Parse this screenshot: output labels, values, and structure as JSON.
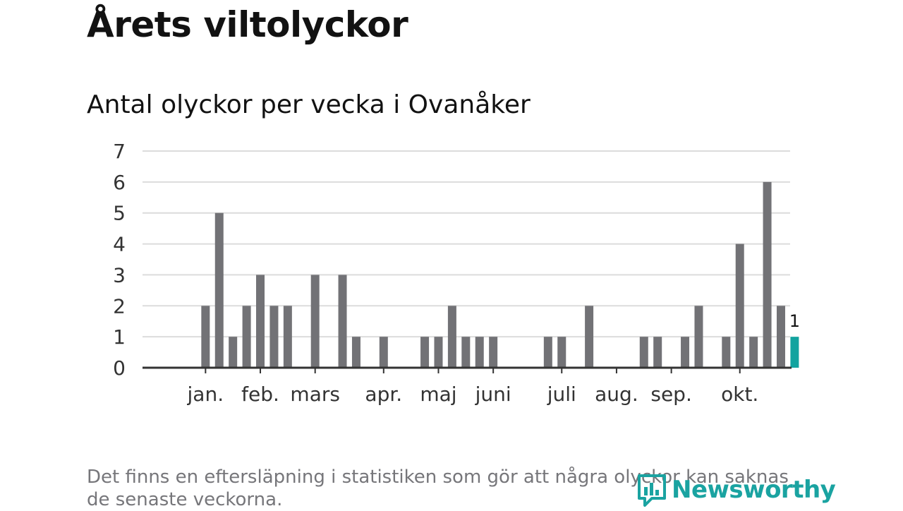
{
  "title": "Årets viltolyckor",
  "subtitle": "Antal olyckor per vecka i Ovanåker",
  "footnote": "Det finns en eftersläpning i statistiken som gör att några olyckor kan saknas de senaste veckorna.",
  "brand": "Newsworthy",
  "colors": {
    "bar": "#727276",
    "highlight": "#12a39f",
    "grid": "#dcdcdc",
    "axis": "#333333",
    "brand": "#1aa3a1"
  },
  "chart_data": {
    "type": "bar",
    "title": "Antal olyckor per vecka i Ovanåker",
    "xlabel": "",
    "ylabel": "",
    "ylim": [
      0,
      7
    ],
    "yticks": [
      "0",
      "1",
      "2",
      "3",
      "4",
      "5",
      "6",
      "7"
    ],
    "weeks": [
      1,
      2,
      3,
      4,
      5,
      6,
      7,
      8,
      9,
      10,
      11,
      12,
      13,
      14,
      15,
      16,
      17,
      18,
      19,
      20,
      21,
      22,
      23,
      24,
      25,
      26,
      27,
      28,
      29,
      30,
      31,
      32,
      33,
      34,
      35,
      36,
      37,
      38,
      39,
      40,
      41,
      42,
      43,
      44,
      45,
      46
    ],
    "values": [
      0,
      0,
      2,
      5,
      1,
      2,
      3,
      2,
      2,
      0,
      3,
      0,
      3,
      1,
      0,
      1,
      0,
      0,
      1,
      1,
      2,
      1,
      1,
      1,
      0,
      0,
      0,
      1,
      1,
      0,
      2,
      0,
      0,
      0,
      1,
      1,
      0,
      1,
      2,
      0,
      1,
      4,
      1,
      6,
      2,
      1
    ],
    "highlight_index": 45,
    "highlight_label": "1",
    "month_labels": [
      "jan.",
      "feb.",
      "mars",
      "apr.",
      "maj",
      "juni",
      "juli",
      "aug.",
      "sep.",
      "okt."
    ],
    "month_tick_weeks": [
      3,
      7,
      11,
      16,
      20,
      24,
      29,
      33,
      37,
      42
    ]
  }
}
